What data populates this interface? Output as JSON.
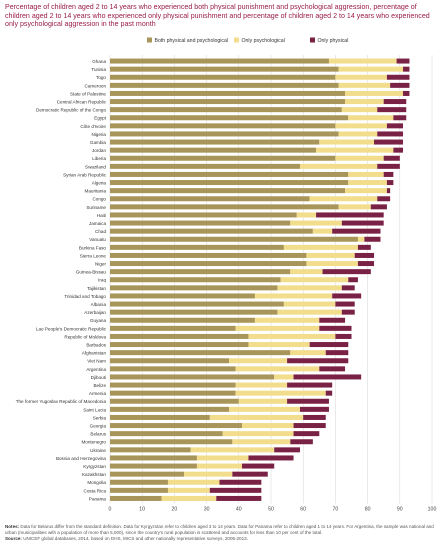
{
  "title": "Percentage of children aged 2 to 14 years who experienced both physical punishment and psychological aggression, percentage of children aged 2 to 14 years who experienced only physical punishment and percentage of children aged 2 to 14 years who experienced only psychological aggression in the past month",
  "notes": {
    "notes_label": "Notes:",
    "notes_text": "Data for Belarus differ from the standard definition. Data for Kyrgyzstan refer to children aged 3 to 14 years. Data for Panama refer to children aged 1 to 14 years. For Argentina, the sample was national and urban (municipalities with a population of more than 5,000), since the country's rural population is scattered and accounts for less than 10 per cent of the total.",
    "source_label": "Source:",
    "source_text": "UNICEF global databases, 2014, based on DHS, MICS and other nationally representative surveys, 2005-2013."
  },
  "colors": {
    "both": "#a8955a",
    "psych": "#f1dd8c",
    "phys": "#7a2246",
    "grid": "#d6d6d6"
  },
  "chart_data": {
    "type": "bar",
    "orientation": "horizontal",
    "stacked": true,
    "legend_position": "top",
    "grid": true,
    "xlim": [
      0,
      100
    ],
    "xticks": [
      0,
      10,
      20,
      30,
      40,
      50,
      60,
      70,
      80,
      90,
      100
    ],
    "categories": [
      "Ghana",
      "Tunisia",
      "Togo",
      "Cameroon",
      "State of Palestine",
      "Central African Republic",
      "Democratic Republic of the Congo",
      "Egypt",
      "Côte d'Ivoire",
      "Nigeria",
      "Gambia",
      "Jordan",
      "Liberia",
      "Swaziland",
      "Syrian Arab Republic",
      "Algeria",
      "Mauritania",
      "Congo",
      "Suriname",
      "Haiti",
      "Jamaica",
      "Chad",
      "Vanuatu",
      "Burkina Faso",
      "Sierra Leone",
      "Niger",
      "Guinea-Bissau",
      "Iraq",
      "Tajikistan",
      "Trinidad and Tobago",
      "Albania",
      "Azerbaijan",
      "Guyana",
      "Lao People's Democratic Republic",
      "Republic of Moldova",
      "Barbados",
      "Afghanistan",
      "Viet Nam",
      "Argentina",
      "Djibouti",
      "Belize",
      "Armenia",
      "The former Yugoslav Republic of Macedonia",
      "Saint Lucia",
      "Serbia",
      "Georgia",
      "Belarus",
      "Montenegro",
      "Ukraine",
      "Bosnia and Herzegovina",
      "Kyrgyzstan",
      "Kazakhstan",
      "Mongolia",
      "Costa Rica",
      "Panama"
    ],
    "series": [
      {
        "name": "Both physical and psychological",
        "values": [
          68,
          71,
          70,
          71,
          73,
          73,
          72,
          74,
          70,
          71,
          65,
          64,
          70,
          59,
          74,
          74,
          73,
          62,
          71,
          58,
          56,
          63,
          77,
          54,
          61,
          61,
          56,
          53,
          52,
          45,
          54,
          52,
          45,
          39,
          43,
          43,
          56,
          37,
          39,
          51,
          39,
          39,
          40,
          37,
          31,
          41,
          35,
          38,
          25,
          27,
          27,
          23,
          18,
          18,
          16
        ]
      },
      {
        "name": "Only psychological",
        "values": [
          21,
          20,
          16,
          16,
          18,
          12,
          11,
          14,
          16,
          12,
          17,
          24,
          15,
          24,
          11,
          12,
          13,
          21,
          10,
          6,
          16,
          6,
          2,
          23,
          15,
          16,
          10,
          21,
          20,
          24,
          16,
          20,
          20,
          26,
          27,
          19,
          11,
          18,
          26,
          6,
          16,
          28,
          15,
          22,
          29,
          16,
          22,
          18,
          26,
          16,
          14,
          15,
          16,
          13,
          17
        ]
      },
      {
        "name": "Only physical",
        "values": [
          4,
          2,
          7,
          6,
          2,
          7,
          9,
          4,
          5,
          8,
          9,
          3,
          5,
          7,
          3,
          2,
          1,
          4,
          5,
          21,
          13,
          15,
          5,
          4,
          6,
          5,
          15,
          3,
          4,
          9,
          6,
          4,
          8,
          10,
          5,
          12,
          7,
          19,
          8,
          21,
          14,
          2,
          13,
          9,
          7,
          10,
          8,
          7,
          8,
          14,
          10,
          11,
          13,
          16,
          14
        ]
      }
    ]
  }
}
